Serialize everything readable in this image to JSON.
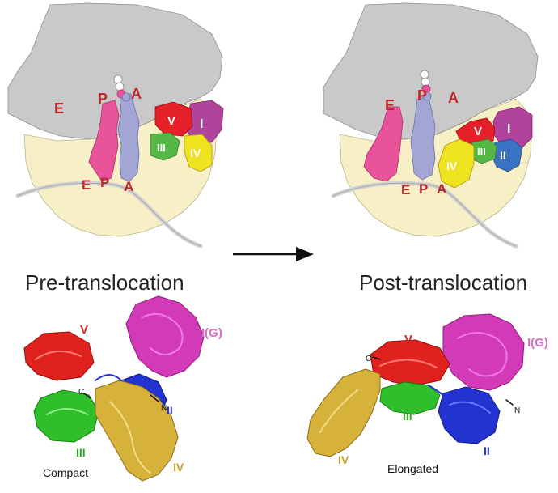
{
  "colors": {
    "large_subunit": "#c9c9c9",
    "small_subunit": "#f7efc6",
    "p_site_trna": "#e8539a",
    "a_site_trna": "#a3a6d4",
    "domain_I": "#b0449c",
    "domain_II": "#3a73c4",
    "domain_III": "#55b846",
    "domain_IV": "#efe21e",
    "domain_V": "#e62028",
    "site_label": "#c0262c",
    "protein_V": "#e0221f",
    "protein_IG": "#d23ab8",
    "protein_II": "#2233d1",
    "protein_III": "#2fbf2a",
    "protein_IV": "#d7b23a"
  },
  "arrow": {
    "direction": "right"
  },
  "panels": {
    "pre": {
      "title": "Pre-translocation",
      "site_labels_large": [
        "E",
        "P",
        "A"
      ],
      "site_labels_small": [
        "E",
        "P",
        "A"
      ],
      "domain_labels": [
        "I",
        "V",
        "III",
        "IV"
      ],
      "protein_labels": {
        "V": "V",
        "IG": "I(G)",
        "II": "II",
        "III": "III",
        "IV": "IV",
        "C": "C",
        "N": "N"
      },
      "state": "Compact"
    },
    "post": {
      "title": "Post-translocation",
      "site_labels_large": [
        "E",
        "P",
        "A"
      ],
      "site_labels_small": [
        "E",
        "P",
        "A"
      ],
      "domain_labels": [
        "I",
        "V",
        "III",
        "IV",
        "II"
      ],
      "protein_labels": {
        "V": "V",
        "IG": "I(G)",
        "II": "II",
        "III": "III",
        "IV": "IV",
        "C": "C",
        "N": "N"
      },
      "state": "Elongated"
    }
  }
}
